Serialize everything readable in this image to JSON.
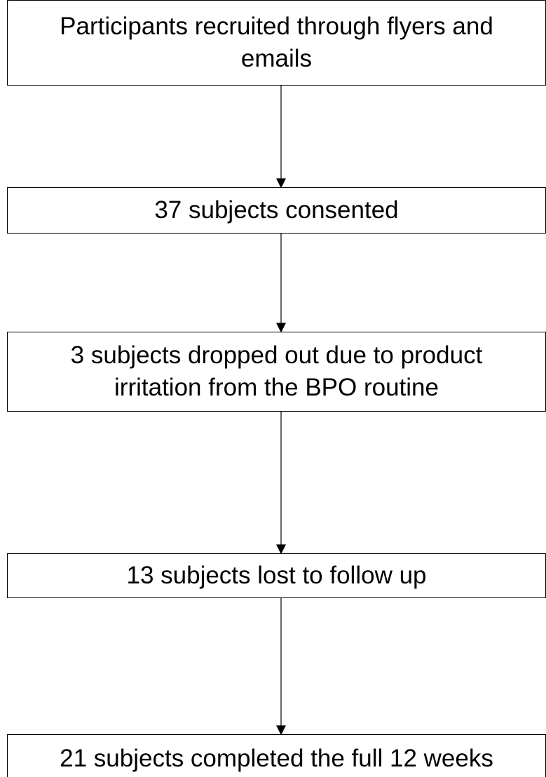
{
  "nodes": [
    {
      "label": "Participants recruited through flyers and emails"
    },
    {
      "label": "37 subjects consented"
    },
    {
      "label": "3 subjects dropped out due to product irritation from the BPO routine"
    },
    {
      "label": "13 subjects lost to follow up"
    },
    {
      "label": "21 subjects completed the full 12 weeks"
    }
  ]
}
